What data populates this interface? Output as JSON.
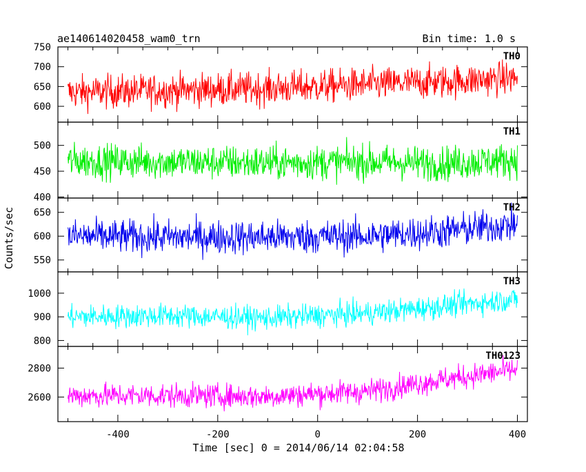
{
  "header": {
    "title": "ae140614020458_wam0_trn",
    "bin_time": "Bin time: 1.0 s"
  },
  "chart_data": {
    "type": "line",
    "xlabel": "Time [sec] 0 = 2014/06/14 02:04:58",
    "ylabel": "Counts/sec",
    "xlim": [
      -520,
      420
    ],
    "x_ticks": [
      -400,
      -200,
      0,
      200,
      400
    ],
    "x_range": [
      -500,
      400
    ],
    "bin_seconds": 1.0,
    "grid": false,
    "panels": [
      {
        "name": "TH0",
        "color": "#ff0000",
        "ylim": [
          560,
          750
        ],
        "yticks": [
          600,
          650,
          700,
          750
        ],
        "trend": [
          [
            -500,
            635
          ],
          [
            -300,
            640
          ],
          [
            -100,
            645
          ],
          [
            100,
            655
          ],
          [
            250,
            662
          ],
          [
            400,
            672
          ]
        ],
        "noise": 38
      },
      {
        "name": "TH1",
        "color": "#00ee00",
        "ylim": [
          398,
          545
        ],
        "yticks": [
          400,
          450,
          500
        ],
        "trend": [
          [
            -500,
            470
          ],
          [
            -300,
            468
          ],
          [
            -100,
            466
          ],
          [
            100,
            468
          ],
          [
            250,
            465
          ],
          [
            400,
            472
          ]
        ],
        "noise": 30
      },
      {
        "name": "TH2",
        "color": "#0000ee",
        "ylim": [
          525,
          680
        ],
        "yticks": [
          550,
          600,
          650
        ],
        "trend": [
          [
            -500,
            600
          ],
          [
            -300,
            598
          ],
          [
            -100,
            598
          ],
          [
            100,
            600
          ],
          [
            250,
            610
          ],
          [
            400,
            625
          ]
        ],
        "noise": 32
      },
      {
        "name": "TH3",
        "color": "#00ffff",
        "ylim": [
          775,
          1090
        ],
        "yticks": [
          800,
          900,
          1000
        ],
        "trend": [
          [
            -500,
            900
          ],
          [
            -300,
            905
          ],
          [
            -100,
            895
          ],
          [
            100,
            915
          ],
          [
            250,
            945
          ],
          [
            400,
            975
          ]
        ],
        "noise": 45
      },
      {
        "name": "TH0123",
        "color": "#ff00ff",
        "ylim": [
          2430,
          2950
        ],
        "yticks": [
          2600,
          2800
        ],
        "trend": [
          [
            -500,
            2610
          ],
          [
            -300,
            2610
          ],
          [
            -100,
            2605
          ],
          [
            100,
            2640
          ],
          [
            250,
            2720
          ],
          [
            400,
            2790
          ]
        ],
        "noise": 75
      }
    ]
  }
}
